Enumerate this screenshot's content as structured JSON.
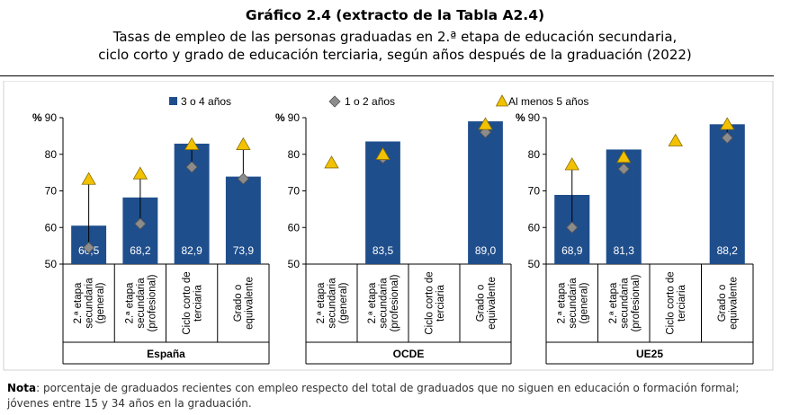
{
  "header": {
    "title": "Gráfico 2.4 (extracto de la Tabla A2.4)",
    "subtitle_line1": "Tasas de empleo de las personas graduadas en 2.ª etapa de educación secundaria,",
    "subtitle_line2": "ciclo corto y grado de educación terciaria, según años después de la graduación (2022)"
  },
  "legend": {
    "bar": "3 o 4 años",
    "diamond": "1 o 2 años",
    "triangle": "Al menos 5 años"
  },
  "colors": {
    "bar": "#1f4e8c",
    "diamond": "#8c8c8c",
    "triangle": "#f2c200"
  },
  "chart_data": {
    "type": "bar",
    "y_unit": "%",
    "ylim": [
      50,
      90
    ],
    "yticks": [
      50,
      60,
      70,
      80,
      90
    ],
    "categories": [
      "2.ª etapa secundaria (general)",
      "2.ª etapa secundaria (profesional)",
      "Ciclo corto de terciaria",
      "Grado o equivalente"
    ],
    "category_lines": [
      [
        "2.ª etapa",
        "secundaria",
        "(general)"
      ],
      [
        "2.ª etapa",
        "secundaria",
        "(profesional)"
      ],
      [
        "Ciclo corto de",
        "terciaria"
      ],
      [
        "Grado o",
        "equivalente"
      ]
    ],
    "panels": [
      {
        "name": "España",
        "bar_values": [
          60.5,
          68.2,
          82.9,
          73.9
        ],
        "bar_labels": [
          "60,5",
          "68,2",
          "82,9",
          "73,9"
        ],
        "diamond_values": [
          54.5,
          61,
          76.5,
          73.3
        ],
        "triangle_values": [
          73,
          74.5,
          82.5,
          82.5
        ]
      },
      {
        "name": "OCDE",
        "bar_values": [
          null,
          83.5,
          null,
          89.0
        ],
        "bar_labels": [
          "",
          "83,5",
          "",
          "89,0"
        ],
        "diamond_values": [
          null,
          79,
          null,
          86
        ],
        "triangle_values": [
          77.5,
          79.8,
          null,
          88
        ]
      },
      {
        "name": "UE25",
        "bar_values": [
          68.9,
          81.3,
          null,
          88.2
        ],
        "bar_labels": [
          "68,9",
          "81,3",
          "",
          "88,2"
        ],
        "diamond_values": [
          60,
          76,
          null,
          84.5
        ],
        "triangle_values": [
          77,
          79,
          83.5,
          88
        ]
      }
    ]
  },
  "note": {
    "label": "Nota",
    "text": ": porcentaje de graduados recientes con empleo respecto del total de graduados que no siguen en educación o formación formal; jóvenes entre 15 y 34 años en la graduación."
  }
}
